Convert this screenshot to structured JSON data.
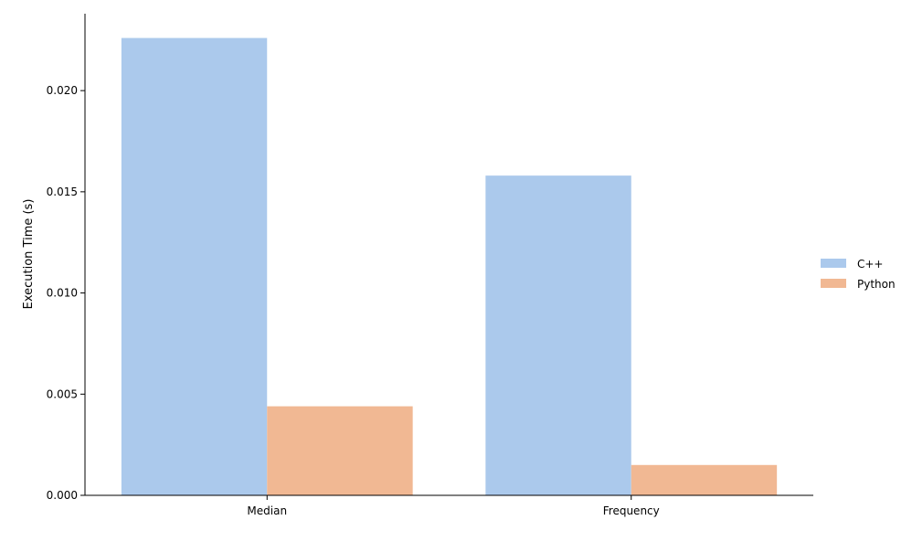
{
  "chart_data": {
    "type": "bar",
    "title": "",
    "xlabel": "",
    "ylabel": "Execution Time (s)",
    "categories": [
      "Median",
      "Frequency"
    ],
    "series": [
      {
        "name": "C++",
        "values": [
          0.0226,
          0.0158
        ],
        "color": "#abc9ec"
      },
      {
        "name": "Python",
        "values": [
          0.0044,
          0.0015
        ],
        "color": "#f1b893"
      }
    ],
    "ylim": [
      0,
      0.0238
    ],
    "yticks": [
      {
        "value": 0.0,
        "label": "0.000"
      },
      {
        "value": 0.005,
        "label": "0.005"
      },
      {
        "value": 0.01,
        "label": "0.010"
      },
      {
        "value": 0.015,
        "label": "0.015"
      },
      {
        "value": 0.02,
        "label": "0.020"
      }
    ],
    "grid": false,
    "legend_position": "right",
    "spines": "left-bottom only"
  }
}
